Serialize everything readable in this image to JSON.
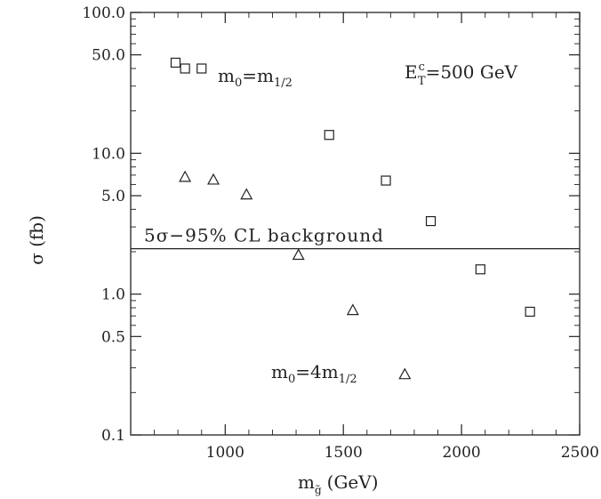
{
  "chart_data": {
    "type": "scatter",
    "xlabel_main": "m",
    "xlabel_sub": "g̃",
    "xlabel_unit": "(GeV)",
    "ylabel": "σ (fb)",
    "xlim": [
      600,
      2500
    ],
    "ylim": [
      0.1,
      100.0
    ],
    "yscale": "log",
    "x_ticks": [
      {
        "value": 1000,
        "label": "1000"
      },
      {
        "value": 1500,
        "label": "1500"
      },
      {
        "value": 2000,
        "label": "2000"
      },
      {
        "value": 2500,
        "label": "2500"
      }
    ],
    "y_ticks": [
      {
        "value": 0.1,
        "label": "0.1"
      },
      {
        "value": 0.5,
        "label": "0.5"
      },
      {
        "value": 1.0,
        "label": "1.0"
      },
      {
        "value": 5.0,
        "label": "5.0"
      },
      {
        "value": 10.0,
        "label": "10.0"
      },
      {
        "value": 50.0,
        "label": "50.0"
      },
      {
        "value": 100.0,
        "label": "100.0"
      }
    ],
    "series": [
      {
        "marker": "square",
        "label": "m0=m1/2",
        "points": [
          {
            "x": 790,
            "y": 44
          },
          {
            "x": 830,
            "y": 40
          },
          {
            "x": 900,
            "y": 40
          },
          {
            "x": 1440,
            "y": 13.5
          },
          {
            "x": 1680,
            "y": 6.4
          },
          {
            "x": 1870,
            "y": 3.3
          },
          {
            "x": 2080,
            "y": 1.5
          },
          {
            "x": 2290,
            "y": 0.75
          }
        ]
      },
      {
        "marker": "triangle",
        "label": "m0=4m1/2",
        "points": [
          {
            "x": 830,
            "y": 6.8
          },
          {
            "x": 950,
            "y": 6.5
          },
          {
            "x": 1090,
            "y": 5.1
          },
          {
            "x": 1310,
            "y": 1.9
          },
          {
            "x": 1540,
            "y": 0.77
          },
          {
            "x": 1760,
            "y": 0.27
          }
        ]
      }
    ],
    "reference_line": {
      "y": 2.1,
      "label": "5σ−95% CL background"
    },
    "annotations": {
      "square_series": {
        "main": "m",
        "sub0": "0",
        "eq": "=m",
        "sub1": "1/2"
      },
      "triangle_series": {
        "main": "m",
        "sub0": "0",
        "eq": "=4m",
        "sub1": "1/2"
      },
      "cut": {
        "main": "E",
        "sup": "c",
        "sub": "T",
        "rest": "=500 GeV"
      }
    }
  }
}
